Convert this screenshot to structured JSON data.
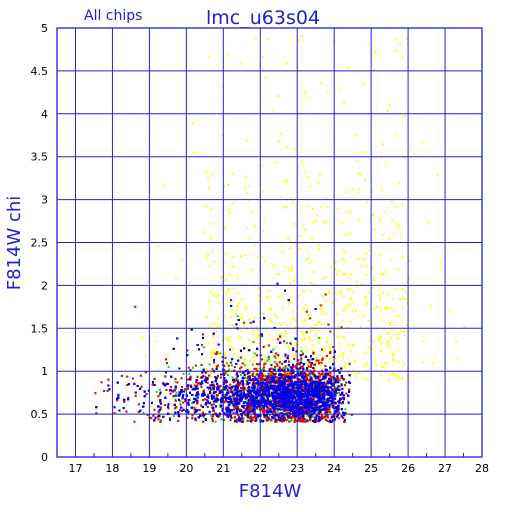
{
  "chart_data": {
    "type": "scatter",
    "title": "lmc_u63s04",
    "subtitle": "All chips",
    "xlabel": "F814W",
    "ylabel": "F814W chi",
    "xlim": [
      16.5,
      28
    ],
    "ylim": [
      0,
      5
    ],
    "x_ticks": [
      17,
      18,
      19,
      20,
      21,
      22,
      23,
      24,
      25,
      26,
      27,
      28
    ],
    "y_ticks": [
      0,
      0.5,
      1,
      1.5,
      2,
      2.5,
      3,
      3.5,
      4,
      4.5,
      5
    ],
    "grid": true,
    "colors": {
      "axis": "#2222cc",
      "grid": "#2222cc",
      "blue": "#0000ee",
      "green": "#00dd00",
      "red": "#ee0000",
      "yellow": "#ffff00"
    },
    "series_style": [
      {
        "color": "#ffff00",
        "point_count": 700
      },
      {
        "color": "#00dd00",
        "point_count": 1800
      },
      {
        "color": "#ee0000",
        "point_count": 1500
      },
      {
        "color": "#0000ee",
        "point_count": 6000
      }
    ],
    "core_distribution": {
      "x_range": [
        17.5,
        25.5
      ],
      "chi_baseline": 0.72,
      "dense_peak_x": 23.5
    }
  }
}
